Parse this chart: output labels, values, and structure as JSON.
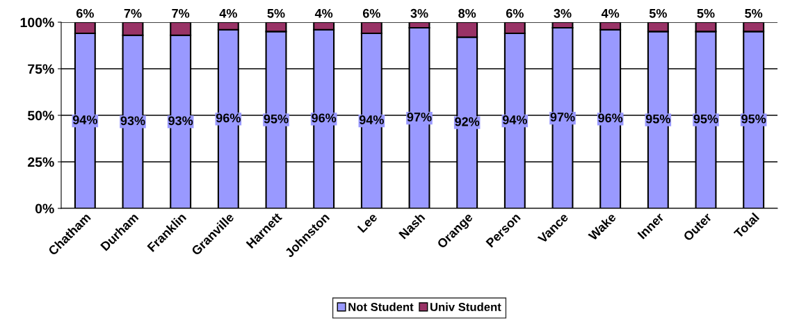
{
  "chart_data": {
    "type": "bar",
    "stacked": true,
    "categories": [
      "Chatham",
      "Durham",
      "Franklin",
      "Granville",
      "Harnett",
      "Johnston",
      "Lee",
      "Nash",
      "Orange",
      "Person",
      "Vance",
      "Wake",
      "Inner",
      "Outer",
      "Total"
    ],
    "series": [
      {
        "name": "Not Student",
        "color": "#9999ff",
        "values": [
          94,
          93,
          93,
          96,
          95,
          96,
          94,
          97,
          92,
          94,
          97,
          96,
          95,
          95,
          95
        ],
        "value_labels": [
          "94%",
          "93%",
          "93%",
          "96%",
          "95%",
          "96%",
          "94%",
          "97%",
          "92%",
          "94%",
          "97%",
          "96%",
          "95%",
          "95%",
          "95%"
        ]
      },
      {
        "name": "Univ Student",
        "color": "#993366",
        "values": [
          6,
          7,
          7,
          4,
          5,
          4,
          6,
          3,
          8,
          6,
          3,
          4,
          5,
          5,
          5
        ],
        "value_labels": [
          "6%",
          "7%",
          "7%",
          "4%",
          "5%",
          "4%",
          "6%",
          "3%",
          "8%",
          "6%",
          "3%",
          "4%",
          "5%",
          "5%",
          "5%"
        ]
      }
    ],
    "ylim": [
      0,
      100
    ],
    "yticks": [
      {
        "value": 0,
        "label": "0%"
      },
      {
        "value": 25,
        "label": "25%"
      },
      {
        "value": 50,
        "label": "50%"
      },
      {
        "value": 75,
        "label": "75%"
      },
      {
        "value": 100,
        "label": "100%"
      }
    ],
    "grid": "y",
    "legend": "bottom"
  }
}
